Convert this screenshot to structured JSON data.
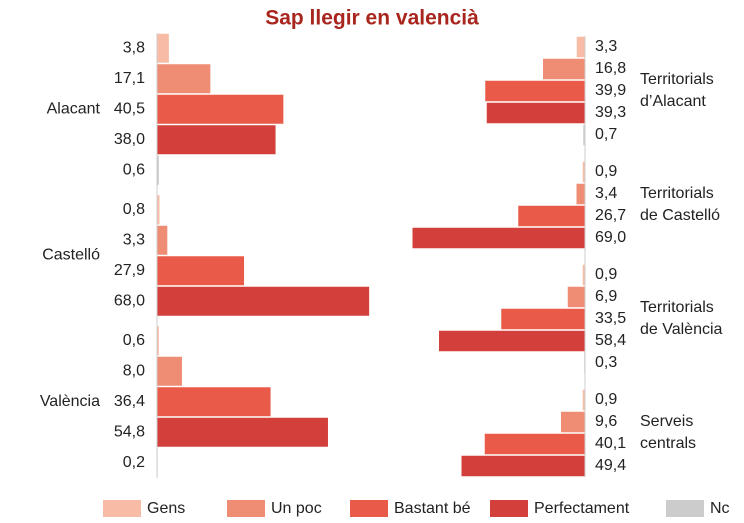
{
  "chart_data": [
    {
      "type": "bar",
      "title": "Sap llegir en valencià",
      "categories": [
        "Alacant",
        "Castelló",
        "València"
      ],
      "series": [
        {
          "name": "Gens",
          "color": "#f7bba6",
          "values": [
            3.8,
            0.8,
            0.6
          ],
          "value_labels": [
            "3,8",
            "0,8",
            "0,6"
          ]
        },
        {
          "name": "Un poc",
          "color": "#ef8c74",
          "values": [
            17.1,
            3.3,
            8.0
          ],
          "value_labels": [
            "17,1",
            "3,3",
            "8,0"
          ]
        },
        {
          "name": "Bastant bé",
          "color": "#e95a48",
          "values": [
            40.5,
            27.9,
            36.4
          ],
          "value_labels": [
            "40,5",
            "27,9",
            "36,4"
          ]
        },
        {
          "name": "Perfectament",
          "color": "#d3403b",
          "values": [
            38.0,
            68.0,
            54.8
          ],
          "value_labels": [
            "38,0",
            "68,0",
            "54,8"
          ]
        },
        {
          "name": "Nc",
          "color": "#cccccc",
          "values": [
            0.6,
            null,
            0.2
          ],
          "value_labels": [
            "0,6",
            null,
            "0,2"
          ]
        }
      ]
    },
    {
      "type": "bar",
      "categories": [
        "Territorials d’Alacant",
        "Territorials de Castelló",
        "Territorials de València",
        "Serveis centrals"
      ],
      "series": [
        {
          "name": "Gens",
          "color": "#f7bba6",
          "values": [
            3.3,
            0.9,
            0.9,
            0.9
          ],
          "value_labels": [
            "3,3",
            "0,9",
            "0,9",
            "0,9"
          ]
        },
        {
          "name": "Un poc",
          "color": "#ef8c74",
          "values": [
            16.8,
            3.4,
            6.9,
            9.6
          ],
          "value_labels": [
            "16,8",
            "3,4",
            "6,9",
            "9,6"
          ]
        },
        {
          "name": "Bastant bé",
          "color": "#e95a48",
          "values": [
            39.9,
            26.7,
            33.5,
            40.1
          ],
          "value_labels": [
            "39,9",
            "26,7",
            "33,5",
            "40,1"
          ]
        },
        {
          "name": "Perfectament",
          "color": "#d3403b",
          "values": [
            39.3,
            69.0,
            58.4,
            49.4
          ],
          "value_labels": [
            "39,3",
            "69,0",
            "58,4",
            "49,4"
          ]
        },
        {
          "name": "Nc",
          "color": "#cccccc",
          "values": [
            0.7,
            null,
            0.3,
            null
          ],
          "value_labels": [
            "0,7",
            null,
            "0,3",
            null
          ]
        }
      ]
    }
  ]
}
